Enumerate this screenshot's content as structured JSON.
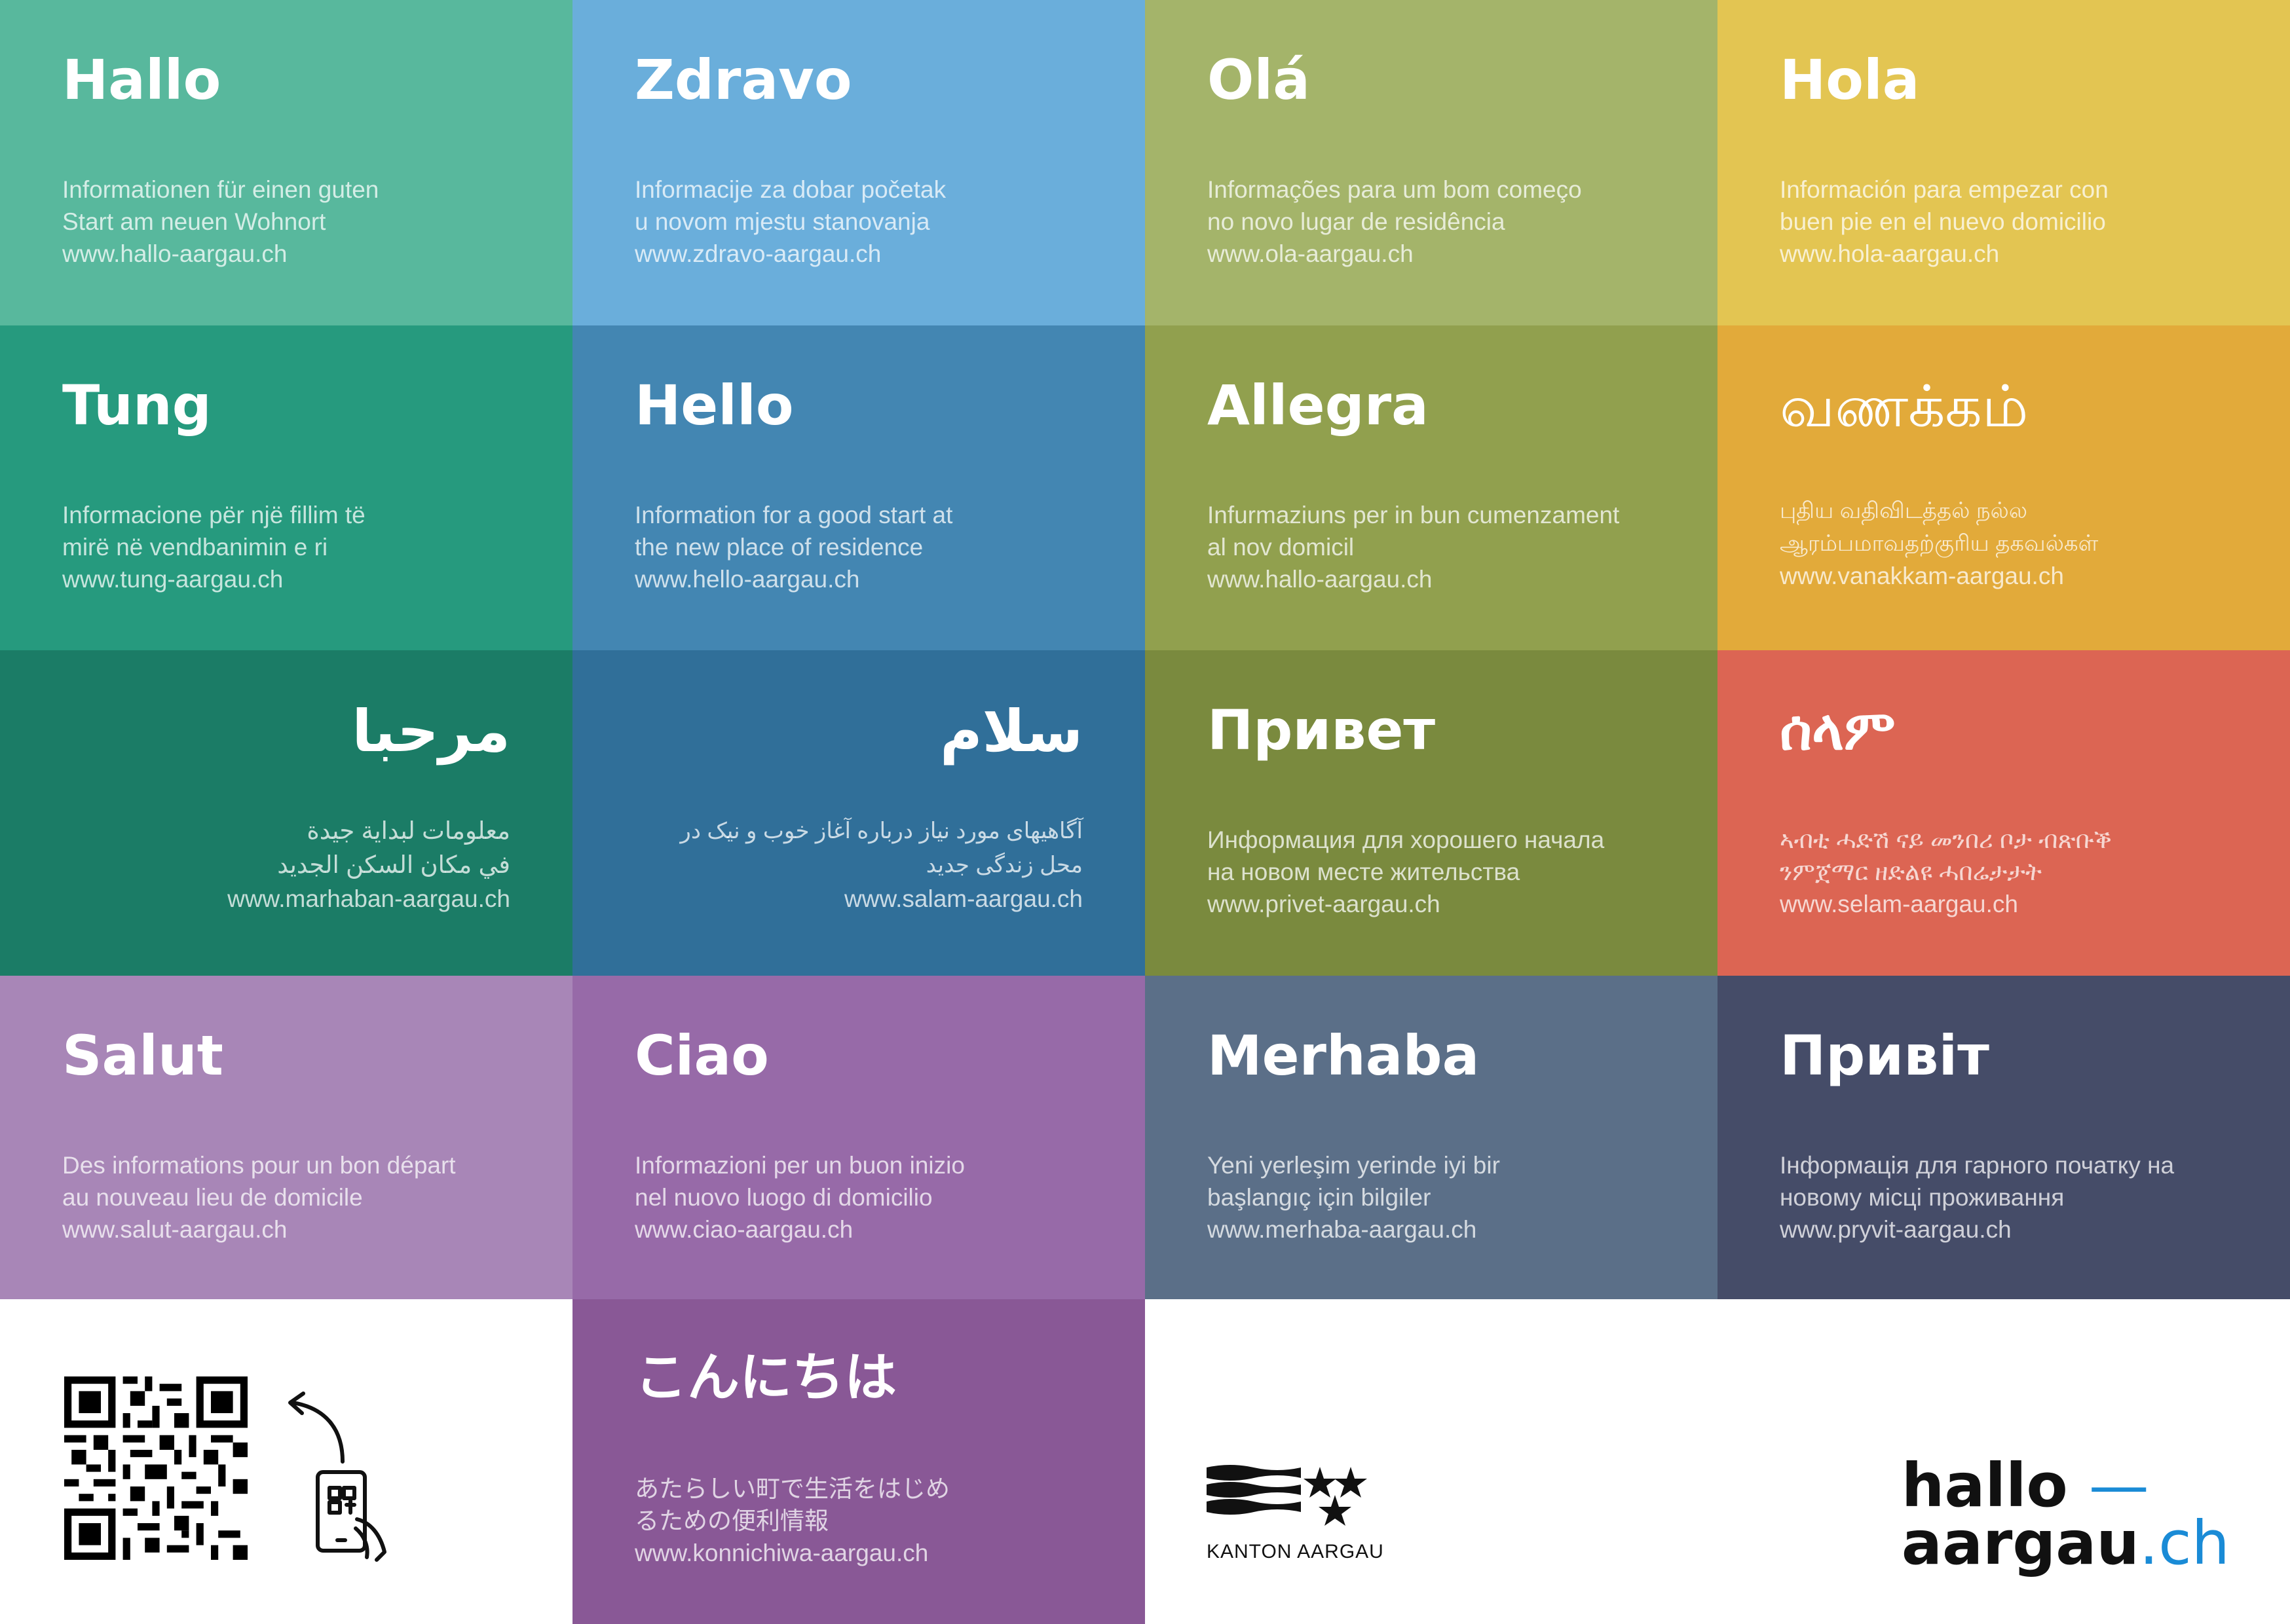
{
  "tiles": [
    {
      "greeting": "Hallo",
      "desc": "Informationen für einen guten\nStart am neuen Wohnort",
      "url": "www.hallo-aargau.ch",
      "color": "#58b89d"
    },
    {
      "greeting": "Zdravo",
      "desc": "Informacije za dobar početak\nu novom mjestu stanovanja",
      "url": "www.zdravo-aargau.ch",
      "color": "#6aaedb"
    },
    {
      "greeting": "Olá",
      "desc": "Informações para um bom começo\nno novo lugar de residência",
      "url": "www.ola-aargau.ch",
      "color": "#a4b46a"
    },
    {
      "greeting": "Hola",
      "desc": "Información para empezar con\nbuen pie en el nuevo domicilio",
      "url": "www.hola-aargau.ch",
      "color": "#e3c552"
    },
    {
      "greeting": "Tung",
      "desc": "Informacione për një fillim të\nmirë në vendbanimin e ri",
      "url": "www.tung-aargau.ch",
      "color": "#269a7e"
    },
    {
      "greeting": "Hello",
      "desc": "Information for a good start at\nthe new place of residence",
      "url": "www.hello-aargau.ch",
      "color": "#4386b2"
    },
    {
      "greeting": "Allegra",
      "desc": "Infurmaziuns per in bun cumenzament\nal nov domicil",
      "url": "www.hallo-aargau.ch",
      "color": "#91a04e"
    },
    {
      "greeting": "வணக்கம்",
      "desc": "புதிய வதிவிடத்தல் நல்ல\nஆரம்பமாவதற்குரிய தகவல்கள்",
      "url": "www.vanakkam-aargau.ch",
      "color": "#e2aa3a"
    },
    {
      "greeting": "مرحبا",
      "desc": "معلومات لبداية جيدة\nفي مكان السكن الجديد",
      "url": "www.marhaban-aargau.ch",
      "color": "#1b7c66"
    },
    {
      "greeting": "سلام",
      "desc": "آگاهیهای مورد نیاز درباره آغاز خوب و نیک در\nمحل زندگی جدید",
      "url": "www.salam-aargau.ch",
      "color": "#306f99"
    },
    {
      "greeting": "Привет",
      "desc": "Информация для хорошего начала\nна новом месте жительства",
      "url": "www.privet-aargau.ch",
      "color": "#7a8a3e"
    },
    {
      "greeting": "ሰላም",
      "desc": "ኣብቲ ሓድሽ ናይ መንበሪ ቦታ ብጽቡቕ\nንምጀማር ዘድልዩ ሓበሬታታት",
      "url": "www.selam-aargau.ch",
      "color": "#dc6553"
    },
    {
      "greeting": "Salut",
      "desc": "Des informations pour un bon départ\nau nouveau lieu de domicile",
      "url": "www.salut-aargau.ch",
      "color": "#a886b7"
    },
    {
      "greeting": "Ciao",
      "desc": "Informazioni per un buon inizio\nnel nuovo luogo di domicilio",
      "url": "www.ciao-aargau.ch",
      "color": "#976aa8"
    },
    {
      "greeting": "Merhaba",
      "desc": "Yeni yerleşim yerinde iyi bir\nbaşlangıç için bilgiler",
      "url": "www.merhaba-aargau.ch",
      "color": "#5b6f88"
    },
    {
      "greeting": "Привіт",
      "desc": "Інформація для гарного початку на\nновому місці проживання",
      "url": "www.pryvit-aargau.ch",
      "color": "#454c68"
    },
    {
      "greeting": "こんにちは",
      "desc": "あたらしい町で生活をはじめ\nるための便利情報",
      "url": "www.konnichiwa-aargau.ch",
      "color": "#895896"
    }
  ],
  "footer": {
    "kanton_label": "KANTON AARGAU",
    "brand_line1": "hallo",
    "brand_line2": "aargau",
    "brand_ch": ".ch"
  }
}
